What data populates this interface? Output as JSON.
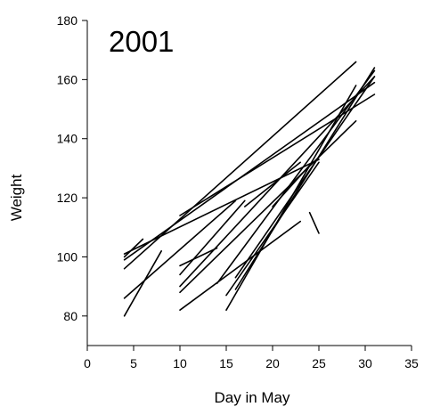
{
  "chart_data": {
    "type": "line",
    "title": "2001",
    "xlabel": "Day in May",
    "ylabel": "Weight",
    "xlim": [
      0,
      35
    ],
    "ylim": [
      70,
      180
    ],
    "xticks": [
      0,
      5,
      10,
      15,
      20,
      25,
      30,
      35
    ],
    "yticks": [
      80,
      100,
      120,
      140,
      160,
      180
    ],
    "grid": false,
    "legend": "none",
    "line_color": "#000000",
    "series": [
      {
        "x": [
          4,
          29
        ],
        "y": [
          96,
          166
        ]
      },
      {
        "x": [
          4,
          31
        ],
        "y": [
          99,
          159
        ]
      },
      {
        "x": [
          4,
          25
        ],
        "y": [
          101,
          133
        ]
      },
      {
        "x": [
          4,
          6
        ],
        "y": [
          100,
          106
        ]
      },
      {
        "x": [
          4,
          8
        ],
        "y": [
          80,
          102
        ]
      },
      {
        "x": [
          4,
          16
        ],
        "y": [
          86,
          119
        ]
      },
      {
        "x": [
          10,
          31
        ],
        "y": [
          114,
          155
        ]
      },
      {
        "x": [
          10,
          23
        ],
        "y": [
          82,
          112
        ]
      },
      {
        "x": [
          10,
          29
        ],
        "y": [
          88,
          146
        ]
      },
      {
        "x": [
          10,
          31
        ],
        "y": [
          90,
          161
        ]
      },
      {
        "x": [
          10,
          17
        ],
        "y": [
          94,
          119
        ]
      },
      {
        "x": [
          10,
          14
        ],
        "y": [
          97,
          103
        ]
      },
      {
        "x": [
          14,
          31
        ],
        "y": [
          91,
          163
        ]
      },
      {
        "x": [
          15,
          29
        ],
        "y": [
          82,
          158
        ]
      },
      {
        "x": [
          15,
          25
        ],
        "y": [
          87,
          132
        ]
      },
      {
        "x": [
          16,
          31
        ],
        "y": [
          89,
          164
        ]
      },
      {
        "x": [
          16,
          31
        ],
        "y": [
          93,
          161
        ]
      },
      {
        "x": [
          17,
          23
        ],
        "y": [
          117,
          132
        ]
      },
      {
        "x": [
          20,
          24
        ],
        "y": [
          117,
          131
        ]
      },
      {
        "x": [
          24,
          25
        ],
        "y": [
          115,
          108
        ]
      }
    ]
  }
}
